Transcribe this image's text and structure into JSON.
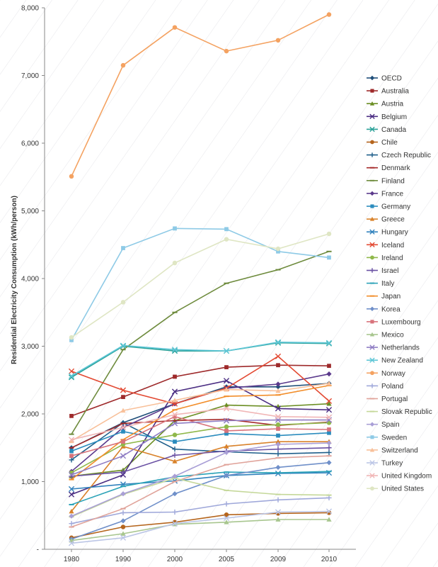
{
  "chart_data": {
    "type": "line",
    "title": "",
    "xlabel": "",
    "ylabel": "Residential Electricity Consumption (kWh/person)",
    "x": [
      "1980",
      "1990",
      "2000",
      "2005",
      "2009",
      "2010"
    ],
    "ylim": [
      0,
      8000
    ],
    "yticks": [
      0,
      1000,
      2000,
      3000,
      4000,
      5000,
      6000,
      7000,
      8000
    ],
    "ytick_labels": [
      "-",
      "1,000",
      "2,000",
      "3,000",
      "4,000",
      "5,000",
      "6,000",
      "7,000",
      "8,000"
    ],
    "grid": "diagonal hatch background",
    "legend_position": "right",
    "series": [
      {
        "name": "OECD",
        "color": "#1f4e79",
        "marker": "diamond",
        "values": [
          1500,
          1870,
          2150,
          2400,
          2400,
          2450
        ]
      },
      {
        "name": "Australia",
        "color": "#9e2a2b",
        "marker": "square",
        "values": [
          1970,
          2250,
          2550,
          2690,
          2720,
          2710
        ]
      },
      {
        "name": "Austria",
        "color": "#6b8e23",
        "marker": "triangle",
        "values": [
          1080,
          1170,
          1900,
          2130,
          2110,
          2150
        ]
      },
      {
        "name": "Belgium",
        "color": "#4b2e83",
        "marker": "x",
        "values": [
          810,
          1100,
          2330,
          2490,
          2080,
          2060
        ]
      },
      {
        "name": "Canada",
        "color": "#2aa198",
        "marker": "x",
        "values": [
          2540,
          3000,
          2930,
          2930,
          3050,
          3040
        ]
      },
      {
        "name": "Chile",
        "color": "#b5651d",
        "marker": "circle",
        "values": [
          170,
          330,
          400,
          510,
          530,
          540
        ]
      },
      {
        "name": "Czech Republic",
        "color": "#1f5f8b",
        "marker": "plus",
        "values": [
          1320,
          1870,
          1480,
          1440,
          1410,
          1430
        ]
      },
      {
        "name": "Denmark",
        "color": "#a52a2a",
        "marker": "dash",
        "values": [
          1500,
          1860,
          1900,
          1920,
          1830,
          1880
        ]
      },
      {
        "name": "Finland",
        "color": "#6e8b3d",
        "marker": "dash",
        "values": [
          1700,
          2950,
          3500,
          3930,
          4130,
          4400
        ]
      },
      {
        "name": "France",
        "color": "#5b3a8c",
        "marker": "diamond",
        "values": [
          1150,
          1800,
          2150,
          2380,
          2440,
          2590
        ]
      },
      {
        "name": "Germany",
        "color": "#2b8cbe",
        "marker": "square",
        "values": [
          1450,
          1740,
          1590,
          1710,
          1680,
          1720
        ]
      },
      {
        "name": "Greece",
        "color": "#d9822b",
        "marker": "triangle",
        "values": [
          560,
          1520,
          1300,
          1520,
          1590,
          1590
        ]
      },
      {
        "name": "Hungary",
        "color": "#3182bd",
        "marker": "x",
        "values": [
          890,
          960,
          1010,
          1090,
          1120,
          1130
        ]
      },
      {
        "name": "Iceland",
        "color": "#e34a33",
        "marker": "x",
        "values": [
          2630,
          2350,
          2150,
          2380,
          2850,
          2190
        ]
      },
      {
        "name": "Ireland",
        "color": "#8fb84a",
        "marker": "circle",
        "values": [
          1130,
          1550,
          1690,
          1810,
          1840,
          1870
        ]
      },
      {
        "name": "Israel",
        "color": "#6a51a3",
        "marker": "plus",
        "values": [
          1080,
          1140,
          1390,
          1450,
          1480,
          1500
        ]
      },
      {
        "name": "Italy",
        "color": "#2ca3b8",
        "marker": "dash",
        "values": [
          660,
          930,
          1070,
          1140,
          1130,
          1150
        ]
      },
      {
        "name": "Japan",
        "color": "#f28e2b",
        "marker": "dash",
        "values": [
          1030,
          1620,
          2060,
          2260,
          2280,
          2420
        ]
      },
      {
        "name": "Korea",
        "color": "#6f8fc9",
        "marker": "diamond",
        "values": [
          150,
          420,
          820,
          1090,
          1210,
          1280
        ]
      },
      {
        "name": "Luxembourg",
        "color": "#d8737b",
        "marker": "square",
        "values": [
          1380,
          1590,
          1960,
          1750,
          1780,
          1770
        ]
      },
      {
        "name": "Mexico",
        "color": "#a8c68f",
        "marker": "triangle",
        "values": [
          130,
          230,
          370,
          400,
          440,
          440
        ]
      },
      {
        "name": "Netherlands",
        "color": "#8e7cc3",
        "marker": "x",
        "values": [
          1100,
          1380,
          1860,
          1900,
          1910,
          1910
        ]
      },
      {
        "name": "New Zealand",
        "color": "#5ec6d6",
        "marker": "x",
        "values": [
          2560,
          3010,
          2950,
          2930,
          3060,
          3050
        ]
      },
      {
        "name": "Norway",
        "color": "#f4a261",
        "marker": "circle",
        "values": [
          5510,
          7150,
          7710,
          7360,
          7520,
          7900
        ]
      },
      {
        "name": "Poland",
        "color": "#9fa8da",
        "marker": "plus",
        "values": [
          380,
          540,
          550,
          670,
          730,
          760
        ]
      },
      {
        "name": "Portugal",
        "color": "#e0a39a",
        "marker": "dash",
        "values": [
          330,
          600,
          1000,
          1250,
          1350,
          1380
        ]
      },
      {
        "name": "Slovak Republic",
        "color": "#c5d89a",
        "marker": "dash",
        "values": [
          480,
          810,
          1050,
          870,
          810,
          800
        ]
      },
      {
        "name": "Spain",
        "color": "#a99fd6",
        "marker": "diamond",
        "values": [
          490,
          820,
          1080,
          1430,
          1550,
          1570
        ]
      },
      {
        "name": "Sweden",
        "color": "#8ecae6",
        "marker": "square",
        "values": [
          3090,
          4450,
          4740,
          4730,
          4400,
          4310
        ]
      },
      {
        "name": "Switzerland",
        "color": "#f8c09a",
        "marker": "triangle",
        "values": [
          1600,
          2050,
          2200,
          2360,
          2340,
          2450
        ]
      },
      {
        "name": "Turkey",
        "color": "#bcc6e6",
        "marker": "x",
        "values": [
          90,
          170,
          380,
          460,
          550,
          560
        ]
      },
      {
        "name": "United Kingdom",
        "color": "#f1b6b6",
        "marker": "x",
        "values": [
          1620,
          1800,
          1990,
          2080,
          1960,
          1950
        ]
      },
      {
        "name": "United States",
        "color": "#dfe6c4",
        "marker": "circle",
        "values": [
          3130,
          3650,
          4230,
          4580,
          4440,
          4660
        ]
      }
    ]
  }
}
